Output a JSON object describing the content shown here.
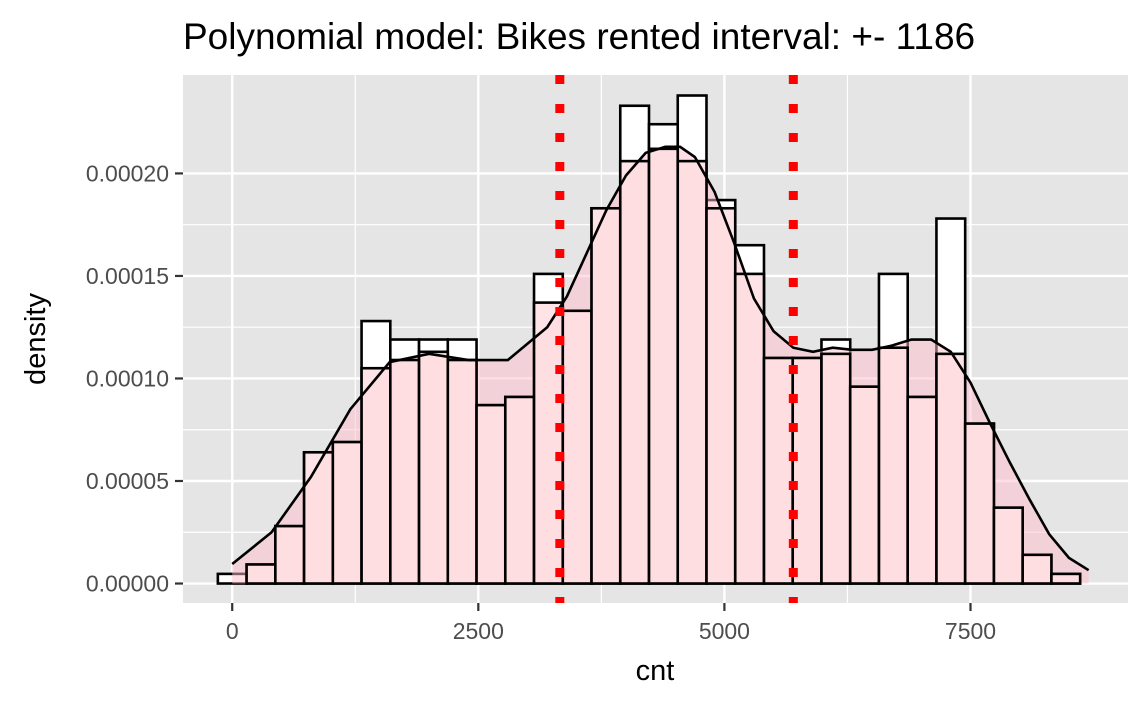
{
  "chart_data": {
    "type": "histogram",
    "title": "Polynomial model: Bikes rented interval: +- 1186",
    "xlabel": "cnt",
    "ylabel": "density",
    "xlim": [
      -500,
      9100
    ],
    "ylim": [
      -9.5e-06,
      0.000248
    ],
    "x_ticks": [
      0,
      2500,
      5000,
      7500
    ],
    "x_tick_labels": [
      "0",
      "2500",
      "5000",
      "7500"
    ],
    "y_ticks": [
      0,
      5e-05,
      0.0001,
      0.00015,
      0.0002
    ],
    "y_tick_labels": [
      "0.00000",
      "0.00005",
      "0.00010",
      "0.00015",
      "0.00020"
    ],
    "grid": true,
    "background": "#e5e5e5",
    "bin_width": 292,
    "bins_observed": [
      {
        "x0": -146,
        "x1": 146,
        "density": 4.7e-06
      },
      {
        "x0": 146,
        "x1": 438,
        "density": 9.3e-06
      },
      {
        "x0": 438,
        "x1": 730,
        "density": 2.8e-05
      },
      {
        "x0": 730,
        "x1": 1022,
        "density": 6.4e-05
      },
      {
        "x0": 1022,
        "x1": 1314,
        "density": 6.9e-05
      },
      {
        "x0": 1314,
        "x1": 1606,
        "density": 0.000128
      },
      {
        "x0": 1606,
        "x1": 1898,
        "density": 0.000119
      },
      {
        "x0": 1898,
        "x1": 2190,
        "density": 0.000119
      },
      {
        "x0": 2190,
        "x1": 2482,
        "density": 0.000119
      },
      {
        "x0": 2482,
        "x1": 2774,
        "density": 8.7e-05
      },
      {
        "x0": 2774,
        "x1": 3066,
        "density": 9.1e-05
      },
      {
        "x0": 3066,
        "x1": 3358,
        "density": 0.000151
      },
      {
        "x0": 3358,
        "x1": 3650,
        "density": 0.000133
      },
      {
        "x0": 3650,
        "x1": 3942,
        "density": 0.000183
      },
      {
        "x0": 3942,
        "x1": 4234,
        "density": 0.000233
      },
      {
        "x0": 4234,
        "x1": 4526,
        "density": 0.000224
      },
      {
        "x0": 4526,
        "x1": 4818,
        "density": 0.000238
      },
      {
        "x0": 4818,
        "x1": 5110,
        "density": 0.000187
      },
      {
        "x0": 5110,
        "x1": 5402,
        "density": 0.000165
      },
      {
        "x0": 5402,
        "x1": 5694,
        "density": 0.00011
      },
      {
        "x0": 5694,
        "x1": 5986,
        "density": 0.00011
      },
      {
        "x0": 5986,
        "x1": 6278,
        "density": 0.000119
      },
      {
        "x0": 6278,
        "x1": 6570,
        "density": 9.6e-05
      },
      {
        "x0": 6570,
        "x1": 6862,
        "density": 0.000151
      },
      {
        "x0": 6862,
        "x1": 7154,
        "density": 9.1e-05
      },
      {
        "x0": 7154,
        "x1": 7446,
        "density": 0.000178
      },
      {
        "x0": 7446,
        "x1": 7738,
        "density": 7.8e-05
      },
      {
        "x0": 7738,
        "x1": 8030,
        "density": 3.7e-05
      },
      {
        "x0": 8030,
        "x1": 8322,
        "density": 1.4e-05
      },
      {
        "x0": 8322,
        "x1": 8614,
        "density": 4.7e-06
      }
    ],
    "bins_predicted": [
      {
        "x0": 146,
        "x1": 438,
        "density": 9.3e-06
      },
      {
        "x0": 438,
        "x1": 730,
        "density": 2.8e-05
      },
      {
        "x0": 730,
        "x1": 1022,
        "density": 6.4e-05
      },
      {
        "x0": 1022,
        "x1": 1314,
        "density": 6.9e-05
      },
      {
        "x0": 1314,
        "x1": 1606,
        "density": 0.000105
      },
      {
        "x0": 1606,
        "x1": 1898,
        "density": 0.000109
      },
      {
        "x0": 1898,
        "x1": 2190,
        "density": 0.000113
      },
      {
        "x0": 2190,
        "x1": 2482,
        "density": 0.000109
      },
      {
        "x0": 2482,
        "x1": 2774,
        "density": 8.7e-05
      },
      {
        "x0": 2774,
        "x1": 3066,
        "density": 9.1e-05
      },
      {
        "x0": 3066,
        "x1": 3358,
        "density": 0.000137
      },
      {
        "x0": 3358,
        "x1": 3650,
        "density": 0.000133
      },
      {
        "x0": 3650,
        "x1": 3942,
        "density": 0.000183
      },
      {
        "x0": 3942,
        "x1": 4234,
        "density": 0.000206
      },
      {
        "x0": 4234,
        "x1": 4526,
        "density": 0.000212
      },
      {
        "x0": 4526,
        "x1": 4818,
        "density": 0.000206
      },
      {
        "x0": 4818,
        "x1": 5110,
        "density": 0.000183
      },
      {
        "x0": 5110,
        "x1": 5402,
        "density": 0.000151
      },
      {
        "x0": 5402,
        "x1": 5694,
        "density": 0.00011
      },
      {
        "x0": 5694,
        "x1": 5986,
        "density": 0.00011
      },
      {
        "x0": 5986,
        "x1": 6278,
        "density": 0.000112
      },
      {
        "x0": 6278,
        "x1": 6570,
        "density": 9.6e-05
      },
      {
        "x0": 6570,
        "x1": 6862,
        "density": 0.000115
      },
      {
        "x0": 6862,
        "x1": 7154,
        "density": 9.1e-05
      },
      {
        "x0": 7154,
        "x1": 7446,
        "density": 0.000112
      },
      {
        "x0": 7446,
        "x1": 7738,
        "density": 7.8e-05
      },
      {
        "x0": 7738,
        "x1": 8030,
        "density": 3.7e-05
      },
      {
        "x0": 8030,
        "x1": 8322,
        "density": 1.4e-05
      },
      {
        "x0": 8322,
        "x1": 8614,
        "density": 4.7e-06
      }
    ],
    "density_curve": {
      "x": [
        0,
        400,
        800,
        1200,
        1600,
        2000,
        2400,
        2800,
        3200,
        3400,
        3600,
        3800,
        4000,
        4200,
        4400,
        4550,
        4700,
        4900,
        5100,
        5300,
        5500,
        5700,
        5900,
        6100,
        6300,
        6500,
        6700,
        6900,
        7100,
        7300,
        7500,
        7700,
        7900,
        8100,
        8300,
        8500,
        8700
      ],
      "y": [
        9.5e-06,
        2.5e-05,
        5.2e-05,
        8.5e-05,
        0.000108,
        0.000112,
        0.000109,
        0.000109,
        0.000125,
        0.00014,
        0.000161,
        0.000182,
        0.000199,
        0.00021,
        0.000213,
        0.000213,
        0.000208,
        0.000191,
        0.000166,
        0.000139,
        0.000123,
        0.000115,
        0.000113,
        0.000115,
        0.000114,
        0.000114,
        0.000116,
        0.000119,
        0.000119,
        0.000113,
        9.8e-05,
        7.8e-05,
        5.9e-05,
        4.1e-05,
        2.4e-05,
        1.25e-05,
        6.5e-06
      ]
    },
    "interval_lines": [
      3328,
      5700
    ],
    "colors": {
      "bar_fill_observed": "#ffffff",
      "bar_fill_predicted": "#ffdde1",
      "bar_outline": "#000000",
      "density_fill": "#ffc0cb",
      "density_line": "#000000",
      "interval_line": "#ff0000",
      "grid": "#ffffff",
      "panel": "#e5e5e5"
    }
  }
}
